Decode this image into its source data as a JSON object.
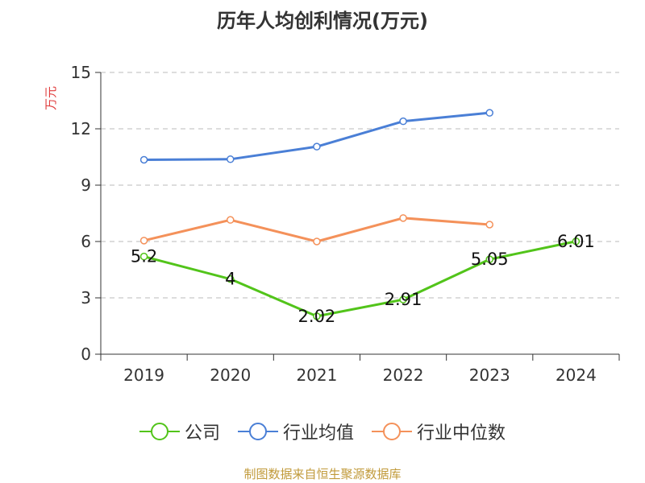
{
  "chart_data": {
    "type": "line",
    "title": "历年人均创利情况(万元)",
    "ylabel": "万元",
    "xlabel": "",
    "categories": [
      "2019",
      "2020",
      "2021",
      "2022",
      "2023",
      "2024"
    ],
    "ylim": [
      0,
      15
    ],
    "yticks": [
      0,
      3,
      6,
      9,
      12,
      15
    ],
    "grid": true,
    "legend_position": "bottom",
    "series": [
      {
        "name": "公司",
        "color": "#52c41a",
        "values": [
          5.2,
          4,
          2.02,
          2.91,
          5.05,
          6.01
        ],
        "data_labels": [
          "5.2",
          "4",
          "2.02",
          "2.91",
          "5.05",
          "6.01"
        ]
      },
      {
        "name": "行业均值",
        "color": "#4a7fd6",
        "values": [
          10.35,
          10.38,
          11.05,
          12.4,
          12.85,
          null
        ]
      },
      {
        "name": "行业中位数",
        "color": "#f4915a",
        "values": [
          6.05,
          7.15,
          6.0,
          7.25,
          6.9,
          null
        ]
      }
    ]
  },
  "source_note": "制图数据来自恒生聚源数据库"
}
